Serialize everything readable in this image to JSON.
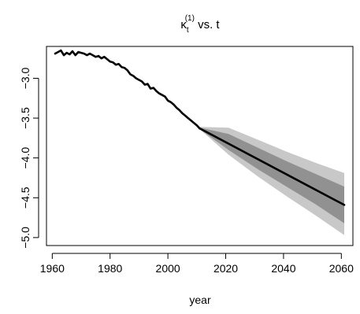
{
  "chart_data": {
    "type": "line",
    "title": {
      "symbol": "κ",
      "subscript": "t",
      "superscript": "(1)",
      "suffix": " vs. t"
    },
    "xlabel": "year",
    "ylabel": "",
    "xlim": [
      1958,
      2064
    ],
    "ylim": [
      -5.1,
      -2.6
    ],
    "x_ticks": [
      1960,
      1980,
      2000,
      2020,
      2040,
      2060
    ],
    "x_tick_labels": [
      "1960",
      "1980",
      "2000",
      "2020",
      "2040",
      "2060"
    ],
    "y_ticks": [
      -3.0,
      -3.5,
      -4.0,
      -4.5,
      -5.0
    ],
    "y_tick_labels": [
      "−3.0",
      "−3.5",
      "−4.0",
      "−4.5",
      "−5.0"
    ],
    "grid": false,
    "legend": "none",
    "series": [
      {
        "role": "observed",
        "x": [
          1961,
          1962,
          1963,
          1964,
          1965,
          1966,
          1967,
          1968,
          1969,
          1970,
          1971,
          1972,
          1973,
          1974,
          1975,
          1976,
          1977,
          1978,
          1979,
          1980,
          1981,
          1982,
          1983,
          1984,
          1985,
          1986,
          1987,
          1988,
          1989,
          1990,
          1991,
          1992,
          1993,
          1994,
          1995,
          1996,
          1997,
          1998,
          1999,
          2000,
          2001,
          2002,
          2003,
          2004,
          2005,
          2006,
          2007,
          2008,
          2009,
          2010,
          2011
        ],
        "y": [
          -2.69,
          -2.67,
          -2.65,
          -2.71,
          -2.68,
          -2.7,
          -2.66,
          -2.71,
          -2.67,
          -2.68,
          -2.69,
          -2.71,
          -2.69,
          -2.71,
          -2.73,
          -2.72,
          -2.75,
          -2.73,
          -2.76,
          -2.79,
          -2.8,
          -2.83,
          -2.82,
          -2.86,
          -2.87,
          -2.9,
          -2.95,
          -2.97,
          -3.0,
          -3.02,
          -3.04,
          -3.08,
          -3.07,
          -3.13,
          -3.12,
          -3.16,
          -3.19,
          -3.21,
          -3.23,
          -3.28,
          -3.3,
          -3.33,
          -3.37,
          -3.4,
          -3.44,
          -3.47,
          -3.5,
          -3.53,
          -3.56,
          -3.59,
          -3.63
        ]
      },
      {
        "role": "forecast-central",
        "x": [
          2011,
          2061
        ],
        "y": [
          -3.63,
          -4.59
        ]
      }
    ],
    "fan_bands": [
      {
        "role": "outer-interval",
        "color": "#c8c8c8",
        "x": [
          2011,
          2021,
          2031,
          2041,
          2051,
          2061
        ],
        "lower": [
          -3.64,
          -3.96,
          -4.23,
          -4.48,
          -4.72,
          -4.97
        ],
        "upper": [
          -3.61,
          -3.62,
          -3.77,
          -3.92,
          -4.06,
          -4.19
        ]
      },
      {
        "role": "inner-interval",
        "color": "#919191",
        "x": [
          2011,
          2021,
          2031,
          2041,
          2051,
          2061
        ],
        "lower": [
          -3.64,
          -3.9,
          -4.14,
          -4.36,
          -4.58,
          -4.82
        ],
        "upper": [
          -3.62,
          -3.7,
          -3.87,
          -4.04,
          -4.2,
          -4.36
        ]
      }
    ],
    "colors": {
      "line": "#000000",
      "outer_band": "#c8c8c8",
      "inner_band": "#919191"
    }
  }
}
